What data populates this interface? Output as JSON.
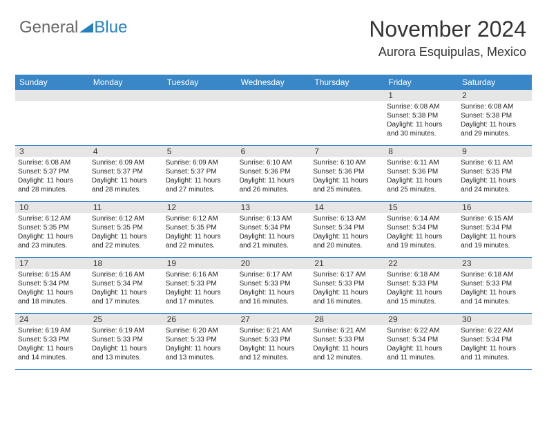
{
  "logo": {
    "text1": "General",
    "text2": "Blue",
    "accent": "#2680c2"
  },
  "header": {
    "month": "November 2024",
    "location": "Aurora Esquipulas, Mexico"
  },
  "dayNames": [
    "Sunday",
    "Monday",
    "Tuesday",
    "Wednesday",
    "Thursday",
    "Friday",
    "Saturday"
  ],
  "colors": {
    "headerBg": "#3a87c8",
    "numRowBg": "#e6e6e6",
    "borderColor": "#3a87c8"
  },
  "weeks": [
    [
      {
        "n": "",
        "sr": "",
        "ss": "",
        "dl": ""
      },
      {
        "n": "",
        "sr": "",
        "ss": "",
        "dl": ""
      },
      {
        "n": "",
        "sr": "",
        "ss": "",
        "dl": ""
      },
      {
        "n": "",
        "sr": "",
        "ss": "",
        "dl": ""
      },
      {
        "n": "",
        "sr": "",
        "ss": "",
        "dl": ""
      },
      {
        "n": "1",
        "sr": "Sunrise: 6:08 AM",
        "ss": "Sunset: 5:38 PM",
        "dl": "Daylight: 11 hours and 30 minutes."
      },
      {
        "n": "2",
        "sr": "Sunrise: 6:08 AM",
        "ss": "Sunset: 5:38 PM",
        "dl": "Daylight: 11 hours and 29 minutes."
      }
    ],
    [
      {
        "n": "3",
        "sr": "Sunrise: 6:08 AM",
        "ss": "Sunset: 5:37 PM",
        "dl": "Daylight: 11 hours and 28 minutes."
      },
      {
        "n": "4",
        "sr": "Sunrise: 6:09 AM",
        "ss": "Sunset: 5:37 PM",
        "dl": "Daylight: 11 hours and 28 minutes."
      },
      {
        "n": "5",
        "sr": "Sunrise: 6:09 AM",
        "ss": "Sunset: 5:37 PM",
        "dl": "Daylight: 11 hours and 27 minutes."
      },
      {
        "n": "6",
        "sr": "Sunrise: 6:10 AM",
        "ss": "Sunset: 5:36 PM",
        "dl": "Daylight: 11 hours and 26 minutes."
      },
      {
        "n": "7",
        "sr": "Sunrise: 6:10 AM",
        "ss": "Sunset: 5:36 PM",
        "dl": "Daylight: 11 hours and 25 minutes."
      },
      {
        "n": "8",
        "sr": "Sunrise: 6:11 AM",
        "ss": "Sunset: 5:36 PM",
        "dl": "Daylight: 11 hours and 25 minutes."
      },
      {
        "n": "9",
        "sr": "Sunrise: 6:11 AM",
        "ss": "Sunset: 5:35 PM",
        "dl": "Daylight: 11 hours and 24 minutes."
      }
    ],
    [
      {
        "n": "10",
        "sr": "Sunrise: 6:12 AM",
        "ss": "Sunset: 5:35 PM",
        "dl": "Daylight: 11 hours and 23 minutes."
      },
      {
        "n": "11",
        "sr": "Sunrise: 6:12 AM",
        "ss": "Sunset: 5:35 PM",
        "dl": "Daylight: 11 hours and 22 minutes."
      },
      {
        "n": "12",
        "sr": "Sunrise: 6:12 AM",
        "ss": "Sunset: 5:35 PM",
        "dl": "Daylight: 11 hours and 22 minutes."
      },
      {
        "n": "13",
        "sr": "Sunrise: 6:13 AM",
        "ss": "Sunset: 5:34 PM",
        "dl": "Daylight: 11 hours and 21 minutes."
      },
      {
        "n": "14",
        "sr": "Sunrise: 6:13 AM",
        "ss": "Sunset: 5:34 PM",
        "dl": "Daylight: 11 hours and 20 minutes."
      },
      {
        "n": "15",
        "sr": "Sunrise: 6:14 AM",
        "ss": "Sunset: 5:34 PM",
        "dl": "Daylight: 11 hours and 19 minutes."
      },
      {
        "n": "16",
        "sr": "Sunrise: 6:15 AM",
        "ss": "Sunset: 5:34 PM",
        "dl": "Daylight: 11 hours and 19 minutes."
      }
    ],
    [
      {
        "n": "17",
        "sr": "Sunrise: 6:15 AM",
        "ss": "Sunset: 5:34 PM",
        "dl": "Daylight: 11 hours and 18 minutes."
      },
      {
        "n": "18",
        "sr": "Sunrise: 6:16 AM",
        "ss": "Sunset: 5:34 PM",
        "dl": "Daylight: 11 hours and 17 minutes."
      },
      {
        "n": "19",
        "sr": "Sunrise: 6:16 AM",
        "ss": "Sunset: 5:33 PM",
        "dl": "Daylight: 11 hours and 17 minutes."
      },
      {
        "n": "20",
        "sr": "Sunrise: 6:17 AM",
        "ss": "Sunset: 5:33 PM",
        "dl": "Daylight: 11 hours and 16 minutes."
      },
      {
        "n": "21",
        "sr": "Sunrise: 6:17 AM",
        "ss": "Sunset: 5:33 PM",
        "dl": "Daylight: 11 hours and 16 minutes."
      },
      {
        "n": "22",
        "sr": "Sunrise: 6:18 AM",
        "ss": "Sunset: 5:33 PM",
        "dl": "Daylight: 11 hours and 15 minutes."
      },
      {
        "n": "23",
        "sr": "Sunrise: 6:18 AM",
        "ss": "Sunset: 5:33 PM",
        "dl": "Daylight: 11 hours and 14 minutes."
      }
    ],
    [
      {
        "n": "24",
        "sr": "Sunrise: 6:19 AM",
        "ss": "Sunset: 5:33 PM",
        "dl": "Daylight: 11 hours and 14 minutes."
      },
      {
        "n": "25",
        "sr": "Sunrise: 6:19 AM",
        "ss": "Sunset: 5:33 PM",
        "dl": "Daylight: 11 hours and 13 minutes."
      },
      {
        "n": "26",
        "sr": "Sunrise: 6:20 AM",
        "ss": "Sunset: 5:33 PM",
        "dl": "Daylight: 11 hours and 13 minutes."
      },
      {
        "n": "27",
        "sr": "Sunrise: 6:21 AM",
        "ss": "Sunset: 5:33 PM",
        "dl": "Daylight: 11 hours and 12 minutes."
      },
      {
        "n": "28",
        "sr": "Sunrise: 6:21 AM",
        "ss": "Sunset: 5:33 PM",
        "dl": "Daylight: 11 hours and 12 minutes."
      },
      {
        "n": "29",
        "sr": "Sunrise: 6:22 AM",
        "ss": "Sunset: 5:34 PM",
        "dl": "Daylight: 11 hours and 11 minutes."
      },
      {
        "n": "30",
        "sr": "Sunrise: 6:22 AM",
        "ss": "Sunset: 5:34 PM",
        "dl": "Daylight: 11 hours and 11 minutes."
      }
    ]
  ]
}
